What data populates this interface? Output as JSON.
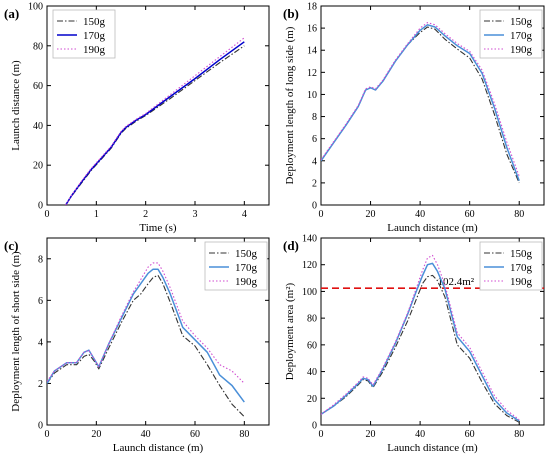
{
  "chart_data": [
    {
      "type": "line",
      "panel": "(a)",
      "xlabel": "Time (s)",
      "ylabel": "Launch distance (m)",
      "xlim": [
        0,
        4.5
      ],
      "ylim": [
        0,
        100
      ],
      "xticks": [
        0,
        1,
        2,
        3,
        4
      ],
      "yticks": [
        0,
        20,
        40,
        60,
        80,
        100
      ],
      "legend": "top-left",
      "series": [
        {
          "name": "150g",
          "color": "#333333",
          "dash": "6,2,1.5,2",
          "x": [
            0.38,
            0.5,
            0.7,
            0.9,
            1.1,
            1.3,
            1.5,
            1.6,
            1.8,
            2.0,
            2.5,
            3.0,
            3.5,
            4.0
          ],
          "y": [
            0,
            4.5,
            11,
            17.5,
            23,
            28.5,
            36,
            38.5,
            42,
            45,
            53.5,
            62.5,
            71.5,
            80
          ]
        },
        {
          "name": "170g",
          "color": "#0000cc",
          "dash": "",
          "x": [
            0.38,
            0.5,
            0.7,
            0.9,
            1.1,
            1.3,
            1.5,
            1.6,
            1.8,
            2.0,
            2.5,
            3.0,
            3.5,
            4.0
          ],
          "y": [
            0,
            4.8,
            11.5,
            18,
            23.5,
            29,
            36.5,
            39,
            42.5,
            45.5,
            54.5,
            63.5,
            73,
            82
          ]
        },
        {
          "name": "190g",
          "color": "#d04bd0",
          "dash": "1.5,2",
          "x": [
            0.38,
            0.5,
            0.7,
            0.9,
            1.1,
            1.3,
            1.5,
            1.6,
            1.8,
            2.0,
            2.5,
            3.0,
            3.5,
            4.0
          ],
          "y": [
            0,
            5,
            12,
            18.5,
            24,
            29.5,
            37,
            39.5,
            43,
            46,
            55.5,
            65,
            74.5,
            84
          ]
        }
      ]
    },
    {
      "type": "line",
      "panel": "(b)",
      "xlabel": "Launch distance (m)",
      "ylabel": "Deployment length of long side (m)",
      "xlim": [
        0,
        90
      ],
      "ylim": [
        0,
        18
      ],
      "xticks": [
        0,
        20,
        40,
        60,
        80
      ],
      "yticks": [
        0,
        2,
        4,
        6,
        8,
        10,
        12,
        14,
        16,
        18
      ],
      "legend": "top-right",
      "series": [
        {
          "name": "150g",
          "color": "#333333",
          "dash": "6,2,1.5,2",
          "x": [
            0,
            5,
            10,
            15,
            18,
            20,
            22,
            25,
            30,
            35,
            40,
            43,
            46,
            50,
            55,
            60,
            65,
            70,
            75,
            80
          ],
          "y": [
            4,
            5.6,
            7.2,
            8.9,
            10.4,
            10.6,
            10.4,
            11.2,
            13,
            14.5,
            15.6,
            16.1,
            15.9,
            15,
            14.1,
            13.3,
            11.4,
            8.2,
            4.6,
            2.0
          ]
        },
        {
          "name": "170g",
          "color": "#4a8fd8",
          "dash": "",
          "x": [
            0,
            5,
            10,
            15,
            18,
            20,
            22,
            25,
            30,
            35,
            40,
            43,
            46,
            50,
            55,
            60,
            65,
            70,
            75,
            80
          ],
          "y": [
            4,
            5.6,
            7.2,
            8.9,
            10.4,
            10.6,
            10.4,
            11.2,
            13,
            14.5,
            15.8,
            16.3,
            16.1,
            15.3,
            14.4,
            13.7,
            11.9,
            8.8,
            5.2,
            2.2
          ]
        },
        {
          "name": "190g",
          "color": "#d04bd0",
          "dash": "1.5,2",
          "x": [
            0,
            5,
            10,
            15,
            18,
            20,
            22,
            25,
            30,
            35,
            40,
            43,
            46,
            50,
            55,
            60,
            65,
            70,
            75,
            80
          ],
          "y": [
            4.1,
            5.7,
            7.3,
            9.0,
            10.5,
            10.7,
            10.5,
            11.3,
            13.1,
            14.6,
            16.0,
            16.5,
            16.3,
            15.5,
            14.6,
            13.9,
            12.2,
            9.2,
            5.7,
            2.6
          ]
        }
      ]
    },
    {
      "type": "line",
      "panel": "(c)",
      "xlabel": "Launch distance (m)",
      "ylabel": "Deployment length of short side (m)",
      "xlim": [
        0,
        90
      ],
      "ylim": [
        0,
        9
      ],
      "xticks": [
        0,
        20,
        40,
        60,
        80
      ],
      "yticks": [
        0,
        2,
        4,
        6,
        8
      ],
      "legend": "top-right",
      "series": [
        {
          "name": "150g",
          "color": "#333333",
          "dash": "6,2,1.5,2",
          "x": [
            0,
            3,
            8,
            12,
            15,
            17,
            19,
            21,
            25,
            30,
            35,
            38,
            41,
            43,
            45,
            47,
            50,
            55,
            60,
            65,
            70,
            75,
            80
          ],
          "y": [
            2.0,
            2.5,
            2.9,
            2.9,
            3.3,
            3.4,
            3.1,
            2.7,
            3.7,
            4.9,
            6.0,
            6.3,
            6.8,
            7.1,
            7.2,
            6.8,
            5.9,
            4.3,
            3.8,
            2.9,
            1.9,
            1.0,
            0.4
          ]
        },
        {
          "name": "170g",
          "color": "#4a8fd8",
          "dash": "",
          "x": [
            0,
            3,
            8,
            12,
            15,
            17,
            19,
            21,
            25,
            30,
            35,
            38,
            41,
            43,
            45,
            47,
            50,
            55,
            60,
            65,
            70,
            75,
            80
          ],
          "y": [
            2.0,
            2.6,
            3.0,
            3.0,
            3.5,
            3.6,
            3.2,
            2.8,
            3.9,
            5.1,
            6.3,
            6.8,
            7.3,
            7.5,
            7.5,
            7.1,
            6.3,
            4.7,
            4.1,
            3.5,
            2.4,
            1.9,
            1.1
          ]
        },
        {
          "name": "190g",
          "color": "#d04bd0",
          "dash": "1.5,2",
          "x": [
            0,
            3,
            8,
            12,
            15,
            17,
            19,
            21,
            25,
            30,
            35,
            38,
            41,
            43,
            45,
            47,
            50,
            55,
            60,
            65,
            70,
            75,
            80
          ],
          "y": [
            2.1,
            2.6,
            3.0,
            3.0,
            3.5,
            3.6,
            3.2,
            2.8,
            3.9,
            5.2,
            6.4,
            7.0,
            7.6,
            7.8,
            7.8,
            7.4,
            6.6,
            5.0,
            4.3,
            3.7,
            2.9,
            2.6,
            2.0
          ]
        }
      ]
    },
    {
      "type": "line",
      "panel": "(d)",
      "xlabel": "Launch distance (m)",
      "ylabel": "Deployment area (m²)",
      "xlim": [
        0,
        90
      ],
      "ylim": [
        0,
        140
      ],
      "xticks": [
        0,
        20,
        40,
        60,
        80
      ],
      "yticks": [
        0,
        20,
        40,
        60,
        80,
        100,
        120,
        140
      ],
      "legend": "top-right",
      "reference_line": {
        "y": 102.4,
        "label": "102.4m²",
        "color": "#e01010"
      },
      "series": [
        {
          "name": "150g",
          "color": "#333333",
          "dash": "6,2,1.5,2",
          "x": [
            0,
            5,
            10,
            15,
            17,
            19,
            21,
            25,
            30,
            35,
            38,
            41,
            43,
            45,
            47,
            50,
            55,
            60,
            65,
            70,
            75,
            80
          ],
          "y": [
            8,
            14,
            21,
            30,
            34,
            33,
            28,
            40,
            58,
            78,
            92,
            106,
            111,
            112,
            108,
            96,
            60,
            50,
            32,
            16,
            7,
            2
          ]
        },
        {
          "name": "170g",
          "color": "#4a8fd8",
          "dash": "",
          "x": [
            0,
            5,
            10,
            15,
            17,
            19,
            21,
            25,
            30,
            35,
            38,
            41,
            43,
            45,
            47,
            50,
            55,
            60,
            65,
            70,
            75,
            80
          ],
          "y": [
            8,
            14,
            22,
            31,
            35,
            34,
            29,
            42,
            61,
            83,
            98,
            112,
            120,
            121,
            115,
            102,
            66,
            55,
            37,
            19,
            9,
            3
          ]
        },
        {
          "name": "190g",
          "color": "#d04bd0",
          "dash": "1.5,2",
          "x": [
            0,
            5,
            10,
            15,
            17,
            19,
            21,
            25,
            30,
            35,
            38,
            41,
            43,
            45,
            47,
            50,
            55,
            60,
            65,
            70,
            75,
            80
          ],
          "y": [
            8,
            15,
            23,
            32,
            36,
            35,
            30,
            43,
            62,
            84,
            100,
            116,
            125,
            127,
            120,
            105,
            69,
            58,
            40,
            22,
            11,
            4
          ]
        }
      ]
    }
  ]
}
